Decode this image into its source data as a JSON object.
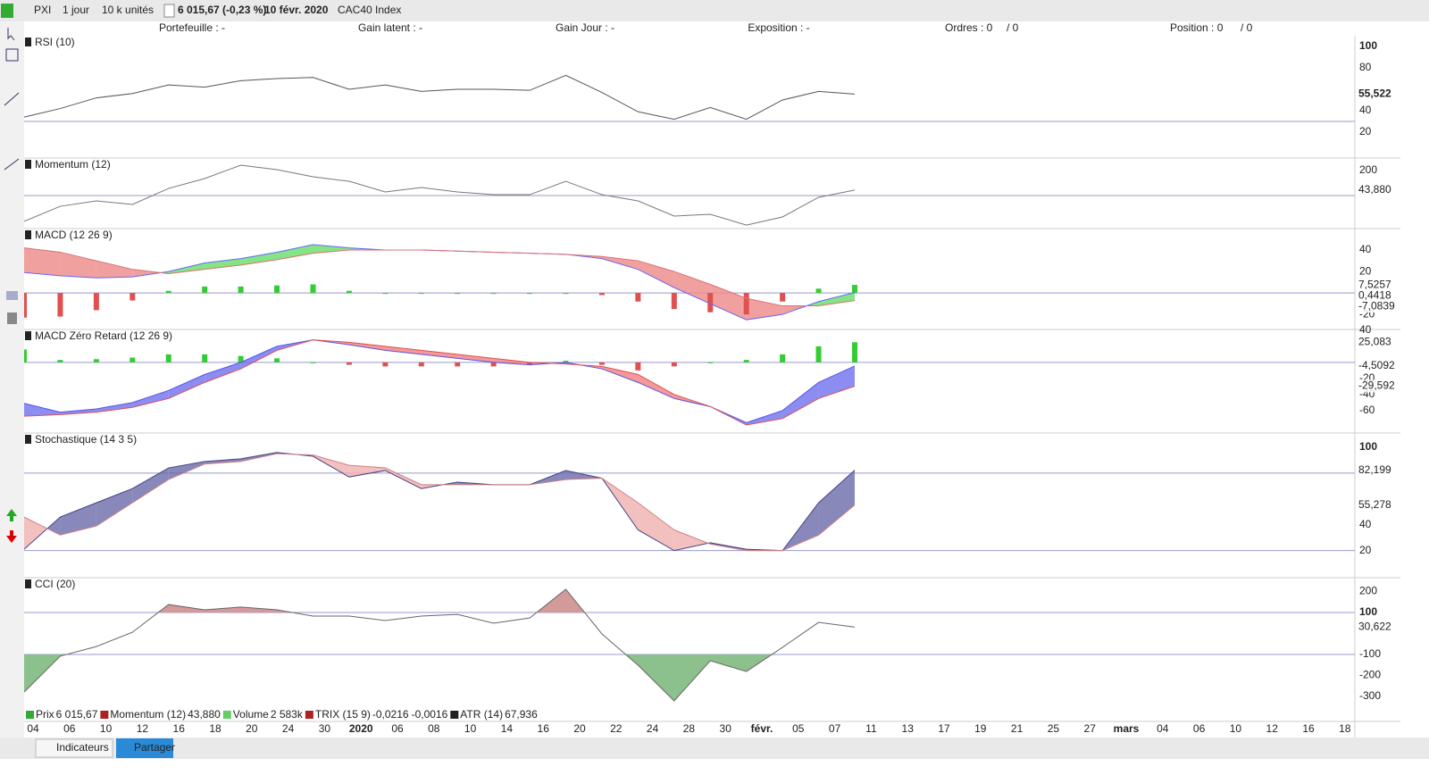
{
  "toolbar": {
    "symbol": "PXI",
    "period": "1 jour",
    "units": "10 k unités",
    "price": "6 015,67 (-0,23 %)",
    "date": "10 févr. 2020",
    "instrument": "CAC40 Index"
  },
  "header": [
    "Portefeuille : -",
    "Gain latent : -",
    "Gain Jour : -",
    "Exposition : -",
    "Ordres : 0",
    "/ 0",
    "Position : 0",
    "/ 0"
  ],
  "panels": [
    {
      "title": "RSI (10)",
      "type": "line",
      "ylim": [
        -4.2,
        110
      ],
      "yticks": [
        100,
        80,
        40,
        20
      ],
      "levels": [
        30
      ],
      "lines": [
        {
          "color": "#555555",
          "values": [
            34,
            42,
            52,
            56,
            64,
            62,
            68,
            70,
            71,
            60,
            64,
            58,
            60,
            60,
            59,
            73,
            57,
            39,
            32,
            43,
            32,
            50,
            58,
            55.522
          ],
          "value_label": "55,522"
        }
      ]
    },
    {
      "title": "Momentum (12)",
      "type": "line",
      "ylim": [
        -264,
        300
      ],
      "yticks": [
        200
      ],
      "levels": [
        0
      ],
      "lines": [
        {
          "color": "#777777",
          "values": [
            -206,
            -86,
            -43,
            -71,
            57,
            136,
            243,
            207,
            150,
            114,
            29,
            64,
            29,
            7,
            7,
            114,
            7,
            -43,
            -164,
            -150,
            -236,
            -171,
            -14,
            43.88
          ],
          "value_label": "43,880"
        }
      ]
    },
    {
      "title": "MACD (12 26 9)",
      "type": "band",
      "ylim": [
        -34,
        60
      ],
      "yticks": [
        40,
        20,
        -20
      ],
      "levels": [
        0
      ],
      "fill": {
        "up": "#66dd66",
        "down": "#ee8888"
      },
      "hist": {
        "colors": {
          "up": "#33cc33",
          "down": "#e05050"
        },
        "values": [
          -23,
          -22,
          -16,
          -7,
          2,
          6,
          6,
          7,
          8,
          2,
          0,
          0,
          0,
          0,
          0,
          0,
          -2,
          -8,
          -15,
          -18,
          -20,
          -8,
          4,
          7.5257
        ],
        "value_label": "7,5257"
      },
      "lines": [
        {
          "color": "#6666ff",
          "values": [
            19,
            16,
            14,
            15,
            20,
            28,
            32,
            38,
            45,
            42,
            40,
            40,
            39,
            38,
            37,
            36,
            32,
            22,
            5,
            -10,
            -25,
            -20,
            -8,
            0.4418
          ],
          "value_label": "0,4418"
        },
        {
          "color": "#e07070",
          "values": [
            42,
            38,
            30,
            22,
            18,
            22,
            26,
            31,
            37,
            40,
            40,
            40,
            39,
            38,
            37,
            36,
            34,
            30,
            20,
            8,
            -5,
            -12,
            -12,
            -7.0839
          ],
          "value_label": "-7,0839"
        }
      ]
    },
    {
      "title": "MACD Zéro Retard (12 26 9)",
      "type": "band",
      "ylim": [
        -88,
        41
      ],
      "yticks": [
        40,
        -20,
        -40,
        -60
      ],
      "levels": [
        0
      ],
      "fill": {
        "up": "#7070ee",
        "down": "#f08080"
      },
      "hist": {
        "colors": {
          "up": "#33cc33",
          "down": "#e05050"
        },
        "values": [
          16,
          3,
          4,
          6,
          10,
          10,
          8,
          5,
          0,
          -3,
          -5,
          -5,
          -5,
          -5,
          -3,
          2,
          -3,
          -10,
          -5,
          0,
          3,
          10,
          20,
          25.083
        ],
        "value_label": "25,083"
      },
      "lines": [
        {
          "color": "#5555ee",
          "values": [
            -51,
            -62,
            -58,
            -50,
            -35,
            -15,
            0,
            20,
            28,
            22,
            15,
            10,
            5,
            0,
            -3,
            0,
            -8,
            -25,
            -45,
            -55,
            -75,
            -60,
            -25,
            -4.5092
          ],
          "value_label": "-4,5092"
        },
        {
          "color": "#e05050",
          "values": [
            -67,
            -65,
            -62,
            -56,
            -45,
            -25,
            -8,
            15,
            28,
            25,
            20,
            15,
            10,
            5,
            0,
            -2,
            -5,
            -15,
            -40,
            -55,
            -78,
            -70,
            -45,
            -29.592
          ],
          "value_label": "-29,592"
        }
      ]
    },
    {
      "title": "Stochastique (14 3 5)",
      "type": "band",
      "ylim": [
        -1,
        111
      ],
      "yticks": [
        100,
        40,
        20
      ],
      "levels": [
        80,
        20
      ],
      "fill": {
        "up": "#6a6aaa",
        "down": "#f0b0b0"
      },
      "lines": [
        {
          "color": "#444488",
          "values": [
            21,
            46,
            57,
            68,
            84,
            89,
            91,
            96,
            93,
            77,
            82,
            68,
            73,
            71,
            71,
            82,
            76,
            36,
            20,
            26,
            21,
            20,
            57,
            82.199
          ],
          "value_label": "82,199"
        },
        {
          "color": "#d08080",
          "values": [
            46,
            32,
            39,
            57,
            75,
            87,
            89,
            95,
            94,
            86,
            84,
            71,
            71,
            71,
            71,
            75,
            76,
            57,
            36,
            25,
            20,
            20,
            32,
            55.278
          ],
          "value_label": "55,278"
        }
      ]
    },
    {
      "title": "CCI (20)",
      "type": "level-fill",
      "ylim": [
        -419,
        266
      ],
      "yticks": [
        200,
        100,
        -100,
        -200,
        -300
      ],
      "levels": [
        100,
        -100
      ],
      "fill": {
        "up": "#d49a9a",
        "down": "#8cc08c"
      },
      "lines": [
        {
          "color": "#666666",
          "values": [
            -279,
            -108,
            -62,
            6,
            138,
            113,
            126,
            113,
            83,
            83,
            62,
            83,
            91,
            49,
            74,
            211,
            -2,
            -151,
            -321,
            -130,
            -181,
            -66,
            53,
            30.622
          ],
          "value_label": "30,622"
        }
      ]
    }
  ],
  "x_labels": [
    "04",
    "06",
    "10",
    "12",
    "16",
    "18",
    "20",
    "24",
    "30",
    "2020",
    "06",
    "08",
    "10",
    "14",
    "16",
    "20",
    "22",
    "24",
    "28",
    "30",
    "févr.",
    "05",
    "07",
    "11",
    "13",
    "17",
    "19",
    "21",
    "25",
    "27",
    "mars",
    "04",
    "06",
    "10",
    "12",
    "16",
    "18"
  ],
  "legend": [
    {
      "text": "Prix",
      "value": "6 015,67",
      "color": "#33aa33"
    },
    {
      "text": "Momentum (12)",
      "value": "43,880",
      "color": "#aa2222"
    },
    {
      "text": "Volume",
      "value": "2 583k",
      "color": "#66cc66"
    },
    {
      "text": "TRIX (15 9)",
      "value": "-0,0216",
      "extra": "-0,0016",
      "color": "#aa2222"
    },
    {
      "text": "ATR (14)",
      "value": "67,936",
      "color": "#222222"
    }
  ],
  "bottom": [
    "Indicateurs",
    "Partager"
  ]
}
